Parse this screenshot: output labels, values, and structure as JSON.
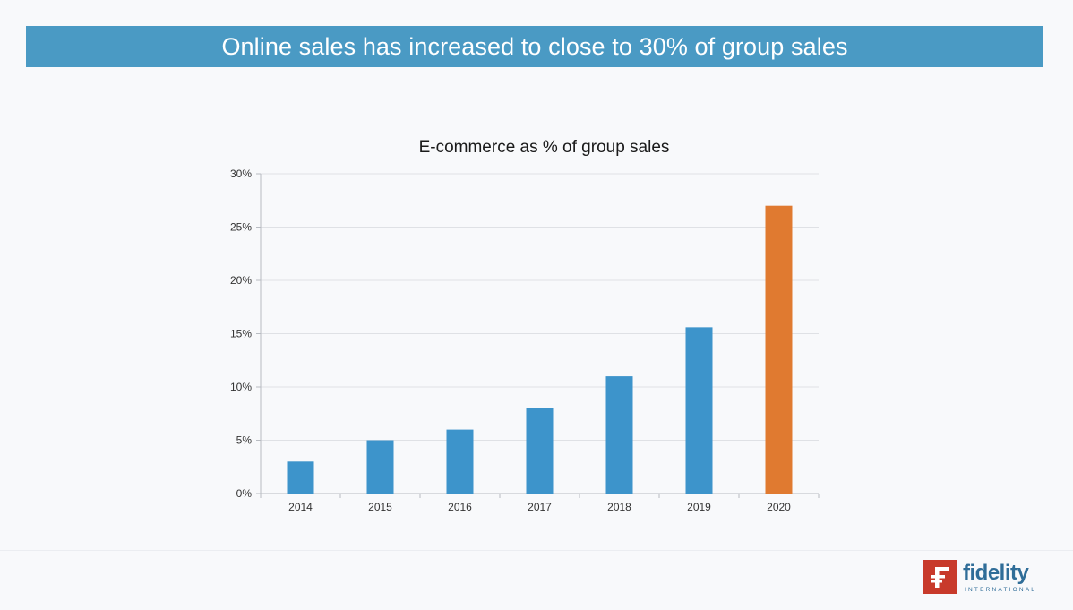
{
  "slide": {
    "headline": "Online sales has increased to close to 30% of group sales"
  },
  "logo": {
    "word": "fidelity",
    "sub": "INTERNATIONAL",
    "mark_letter": "F",
    "mark_color": "#c83a2b",
    "text_color": "#2f6d98"
  },
  "colors": {
    "banner": "#4a9ac4",
    "bar": "#3d94cb",
    "highlight_bar": "#e07a30",
    "grid": "#dfe1e5"
  },
  "chart_data": {
    "type": "bar",
    "title": "E-commerce as % of group sales",
    "xlabel": "",
    "ylabel": "",
    "categories": [
      "2014",
      "2015",
      "2016",
      "2017",
      "2018",
      "2019",
      "2020"
    ],
    "series": [
      {
        "values": [
          3,
          5,
          6,
          8,
          11,
          15.6,
          27
        ]
      }
    ],
    "highlight_category": "2020",
    "ylim": [
      0,
      30
    ],
    "yticks": [
      0,
      5,
      10,
      15,
      20,
      25,
      30
    ],
    "ytick_labels": [
      "0%",
      "5%",
      "10%",
      "15%",
      "20%",
      "25%",
      "30%"
    ],
    "grid": true,
    "legend": "none"
  }
}
